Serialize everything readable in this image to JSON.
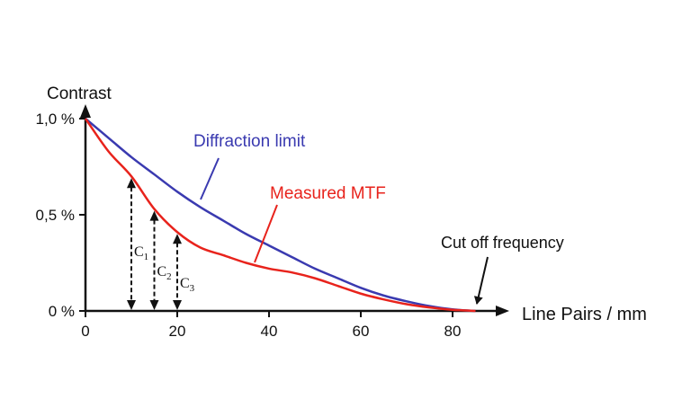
{
  "chart_data": {
    "type": "line",
    "title": "",
    "ylabel": "Contrast",
    "xlabel": "Line Pairs / mm",
    "xlim": [
      0,
      90
    ],
    "ylim": [
      0,
      1.0
    ],
    "x_ticks": [
      0,
      20,
      40,
      60,
      80
    ],
    "x_tick_labels": [
      "0",
      "20",
      "40",
      "60",
      "80"
    ],
    "y_ticks": [
      0,
      0.5,
      1.0
    ],
    "y_tick_labels": [
      "0 %",
      "0,5 %",
      "1,0 %"
    ],
    "grid": false,
    "series": [
      {
        "name": "Diffraction limit",
        "color": "#3a3ab0",
        "x": [
          0,
          5,
          10,
          15,
          20,
          25,
          30,
          35,
          40,
          45,
          50,
          55,
          60,
          65,
          70,
          75,
          80,
          85
        ],
        "y": [
          1.0,
          0.9,
          0.8,
          0.71,
          0.62,
          0.54,
          0.47,
          0.4,
          0.34,
          0.28,
          0.22,
          0.17,
          0.12,
          0.08,
          0.05,
          0.025,
          0.008,
          0.0
        ]
      },
      {
        "name": "Measured MTF",
        "color": "#e8231c",
        "x": [
          0,
          5,
          10,
          15,
          20,
          25,
          30,
          35,
          40,
          45,
          50,
          55,
          60,
          65,
          70,
          75,
          80,
          85
        ],
        "y": [
          1.0,
          0.83,
          0.7,
          0.53,
          0.41,
          0.33,
          0.29,
          0.25,
          0.22,
          0.2,
          0.17,
          0.13,
          0.09,
          0.06,
          0.035,
          0.018,
          0.006,
          0.0
        ]
      }
    ],
    "annotations": [
      {
        "text": "Diffraction limit",
        "target_series": "Diffraction limit"
      },
      {
        "text": "Measured MTF",
        "target_series": "Measured MTF"
      },
      {
        "text": "Cut off frequency",
        "x": 85,
        "y": 0
      }
    ],
    "contrast_markers": [
      {
        "label": "C",
        "sub": "1",
        "x": 10,
        "y": 0.7
      },
      {
        "label": "C",
        "sub": "2",
        "x": 15,
        "y": 0.53
      },
      {
        "label": "C",
        "sub": "3",
        "x": 20,
        "y": 0.41
      }
    ]
  }
}
